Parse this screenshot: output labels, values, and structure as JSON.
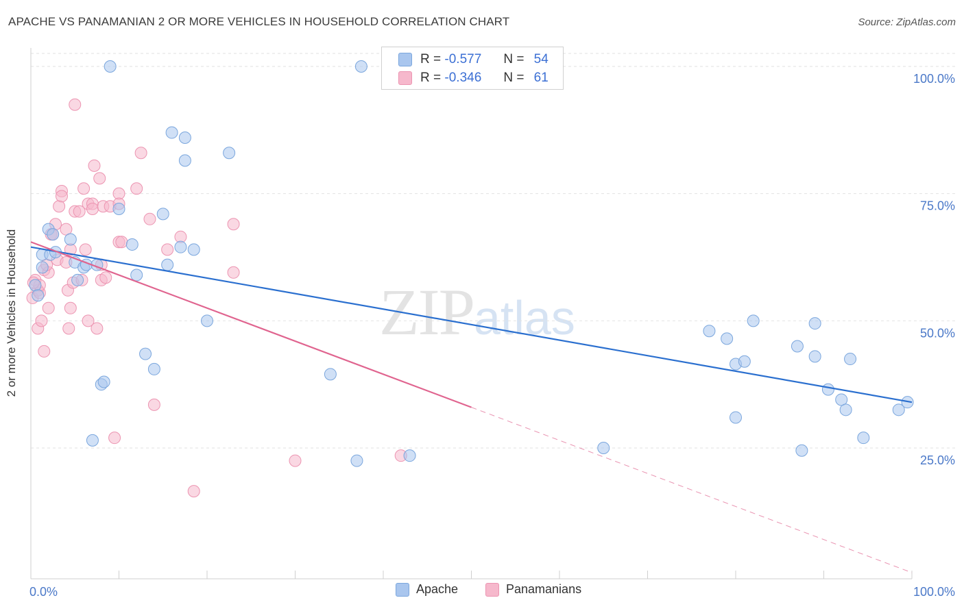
{
  "title": "APACHE VS PANAMANIAN 2 OR MORE VEHICLES IN HOUSEHOLD CORRELATION CHART",
  "source": "Source: ZipAtlas.com",
  "watermark": {
    "zip": "ZIP",
    "atlas": "atlas"
  },
  "legend_stats": {
    "apache": {
      "r_label": "R =",
      "r_value": "-0.577",
      "n_label": "N =",
      "n_value": "54"
    },
    "panamanian": {
      "r_label": "R =",
      "r_value": "-0.346",
      "n_label": "N =",
      "n_value": "61"
    }
  },
  "colors": {
    "apache_fill": "#a9c6ee",
    "apache_stroke": "#7aa6dd",
    "apache_line": "#2a6fcf",
    "panamanian_fill": "#f6b8cc",
    "panamanian_stroke": "#ec94b1",
    "panamanian_line": "#e0648f",
    "grid": "#e2e2e2",
    "axis_text": "#4a78c8"
  },
  "chart_data": {
    "type": "scatter",
    "title": "APACHE VS PANAMANIAN 2 OR MORE VEHICLES IN HOUSEHOLD CORRELATION CHART",
    "xlabel": "",
    "ylabel": "2 or more Vehicles in Household",
    "xlim": [
      0,
      100
    ],
    "ylim": [
      0,
      102
    ],
    "x_tick_labels": [
      "0.0%",
      "100.0%"
    ],
    "y_ticks": [
      25,
      50,
      75,
      100
    ],
    "y_tick_labels": [
      "25.0%",
      "50.0%",
      "75.0%",
      "100.0%"
    ],
    "grid": "horizontal dashed",
    "legend_position": "bottom",
    "series": [
      {
        "name": "Apache",
        "points": [
          [
            0.5,
            57
          ],
          [
            0.8,
            55
          ],
          [
            1.3,
            63
          ],
          [
            1.3,
            60.5
          ],
          [
            2.0,
            68
          ],
          [
            2.2,
            63
          ],
          [
            2.5,
            67
          ],
          [
            2.8,
            63.5
          ],
          [
            4.5,
            66
          ],
          [
            5.0,
            61.5
          ],
          [
            5.3,
            58
          ],
          [
            6.0,
            60.5
          ],
          [
            6.3,
            61
          ],
          [
            7.0,
            26.5
          ],
          [
            7.5,
            61
          ],
          [
            8.0,
            37.5
          ],
          [
            8.3,
            38
          ],
          [
            9.0,
            100
          ],
          [
            10.0,
            72
          ],
          [
            11.5,
            65
          ],
          [
            12.0,
            59
          ],
          [
            13.0,
            43.5
          ],
          [
            14.0,
            40.5
          ],
          [
            15.0,
            71
          ],
          [
            15.5,
            61
          ],
          [
            16.0,
            87
          ],
          [
            17.0,
            64.5
          ],
          [
            17.5,
            86
          ],
          [
            17.5,
            81.5
          ],
          [
            18.5,
            64
          ],
          [
            20.0,
            50
          ],
          [
            22.5,
            83
          ],
          [
            34.0,
            39.5
          ],
          [
            37.0,
            22.5
          ],
          [
            37.5,
            100
          ],
          [
            43.0,
            23.5
          ],
          [
            65.0,
            25
          ],
          [
            77.0,
            48
          ],
          [
            79.0,
            46.5
          ],
          [
            80.0,
            41.5
          ],
          [
            80.0,
            31
          ],
          [
            81.0,
            42
          ],
          [
            82.0,
            50
          ],
          [
            87.0,
            45
          ],
          [
            87.5,
            24.5
          ],
          [
            89.0,
            43
          ],
          [
            89.0,
            49.5
          ],
          [
            90.5,
            36.5
          ],
          [
            92.0,
            34.5
          ],
          [
            92.5,
            32.5
          ],
          [
            93.0,
            42.5
          ],
          [
            94.5,
            27
          ],
          [
            98.5,
            32.5
          ],
          [
            99.5,
            34
          ]
        ],
        "trend": {
          "x": [
            0,
            100
          ],
          "y": [
            64.5,
            34
          ]
        }
      },
      {
        "name": "Panamanians",
        "points": [
          [
            0.2,
            54.5
          ],
          [
            0.5,
            58
          ],
          [
            0.8,
            56
          ],
          [
            0.8,
            48.5
          ],
          [
            1.0,
            55.5
          ],
          [
            1.0,
            57
          ],
          [
            1.2,
            50
          ],
          [
            1.5,
            44
          ],
          [
            1.5,
            60
          ],
          [
            2.0,
            52.5
          ],
          [
            2.0,
            59.5
          ],
          [
            2.3,
            67
          ],
          [
            2.5,
            67
          ],
          [
            2.8,
            69
          ],
          [
            3.0,
            62
          ],
          [
            3.2,
            72.5
          ],
          [
            3.5,
            75.5
          ],
          [
            3.5,
            74.5
          ],
          [
            4.0,
            61.5
          ],
          [
            4.0,
            68
          ],
          [
            4.2,
            56
          ],
          [
            4.3,
            48.5
          ],
          [
            4.5,
            64
          ],
          [
            4.5,
            52.5
          ],
          [
            4.8,
            57.5
          ],
          [
            5.0,
            92.5
          ],
          [
            5.0,
            71.5
          ],
          [
            5.5,
            71.5
          ],
          [
            5.8,
            58
          ],
          [
            6.0,
            76
          ],
          [
            6.2,
            64
          ],
          [
            6.5,
            73
          ],
          [
            6.5,
            50
          ],
          [
            7.0,
            73
          ],
          [
            7.0,
            72
          ],
          [
            7.2,
            80.5
          ],
          [
            7.5,
            48.5
          ],
          [
            7.8,
            78
          ],
          [
            8.0,
            58
          ],
          [
            8.0,
            61
          ],
          [
            8.2,
            72.5
          ],
          [
            8.5,
            58.5
          ],
          [
            9.0,
            72.5
          ],
          [
            9.5,
            27
          ],
          [
            10.0,
            65.5
          ],
          [
            10.0,
            75
          ],
          [
            10.0,
            73
          ],
          [
            10.3,
            65.5
          ],
          [
            12.0,
            76
          ],
          [
            12.5,
            83
          ],
          [
            13.5,
            70
          ],
          [
            14.0,
            33.5
          ],
          [
            15.5,
            64
          ],
          [
            17.0,
            66.5
          ],
          [
            18.5,
            16.5
          ],
          [
            23.0,
            69
          ],
          [
            23.0,
            59.5
          ],
          [
            30.0,
            22.5
          ],
          [
            42.0,
            23.5
          ],
          [
            0.3,
            57.5
          ],
          [
            1.8,
            61
          ]
        ],
        "trend": {
          "x": [
            0,
            50
          ],
          "y": [
            65.5,
            33
          ]
        },
        "trend_extension": {
          "x": [
            50,
            100
          ],
          "y": [
            33,
            0.5
          ]
        }
      }
    ]
  }
}
